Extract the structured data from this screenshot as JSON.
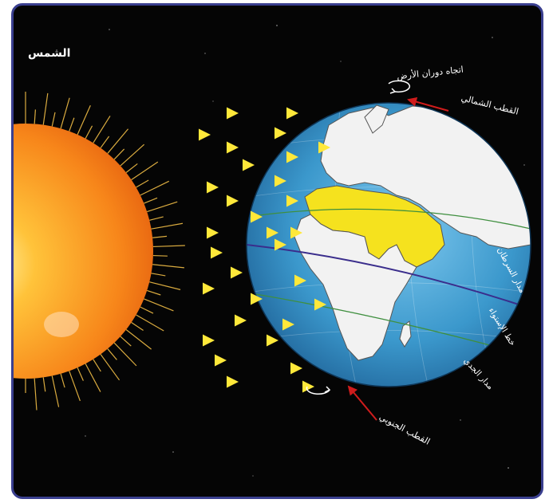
{
  "labels": {
    "sun": "الشمس",
    "rotation_direction": "اتجاه دوران الأرض",
    "north_pole": "القطب الشمالي",
    "tropic_of_cancer": "مدار السرطان",
    "equator": "خط الإستواء",
    "tropic_of_capricorn": "مدار الجدي",
    "south_pole": "القطب الجنوبي"
  },
  "colors": {
    "frame_border": "#3a3f8f",
    "background": "#050505",
    "sun_core": "#ffd23a",
    "sun_edge": "#f07a10",
    "ray_arrow": "#f7d32a",
    "ocean": "#3f9fd1",
    "land": "#f2f2f2",
    "highlight_land": "#f5e21e",
    "equator_line": "#3a2d8c",
    "pole_arrow": "#d01c1c"
  },
  "icons": {
    "rotation": "curved-rotation-arrow-icon",
    "pole_pointer": "red-arrow-icon"
  }
}
